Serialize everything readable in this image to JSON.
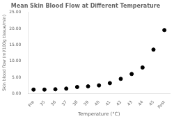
{
  "chart_data": {
    "type": "scatter",
    "title": "Mean Skin Blood Flow at Different Temperature",
    "xlabel": "Temperature (°C)",
    "ylabel": "Skin blood flow (ml/100g tissue/min)",
    "categories": [
      "Pre",
      "35",
      "36",
      "37",
      "38",
      "39",
      "40",
      "41",
      "42",
      "43",
      "44",
      "45",
      "Post"
    ],
    "values": [
      1.2,
      1.2,
      1.3,
      1.5,
      2.0,
      2.2,
      2.5,
      3.2,
      4.5,
      6.0,
      8.0,
      13.5,
      19.5
    ],
    "color": "black",
    "marker": "circle",
    "ylim": [
      0.0,
      25.0
    ],
    "yticks": [
      {
        "value": 0.0,
        "label": "0.00"
      },
      {
        "value": 5.0,
        "label": "5.00"
      },
      {
        "value": 10.0,
        "label": "10.00"
      },
      {
        "value": 15.0,
        "label": "15.00"
      },
      {
        "value": 20.0,
        "label": "20.00"
      },
      {
        "value": 25.0,
        "label": "25.00"
      }
    ],
    "grid": false
  }
}
